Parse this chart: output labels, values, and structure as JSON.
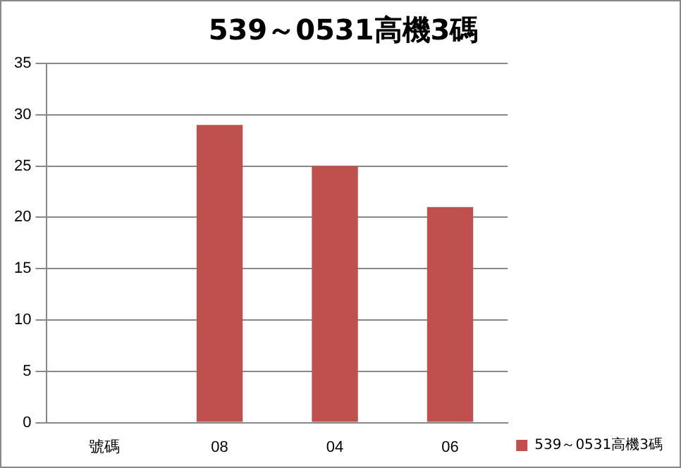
{
  "chart_data": {
    "type": "bar",
    "title": "539～0531高機3碼",
    "categories": [
      "號碼",
      "08",
      "04",
      "06"
    ],
    "series": [
      {
        "name": "539～0531高機3碼",
        "color": "#c0504d",
        "values": [
          null,
          29,
          25,
          21
        ]
      }
    ],
    "ylim": [
      0,
      35
    ],
    "yticks": [
      0,
      5,
      10,
      15,
      20,
      25,
      30,
      35
    ],
    "grid": "y",
    "legend": "bottom right"
  }
}
